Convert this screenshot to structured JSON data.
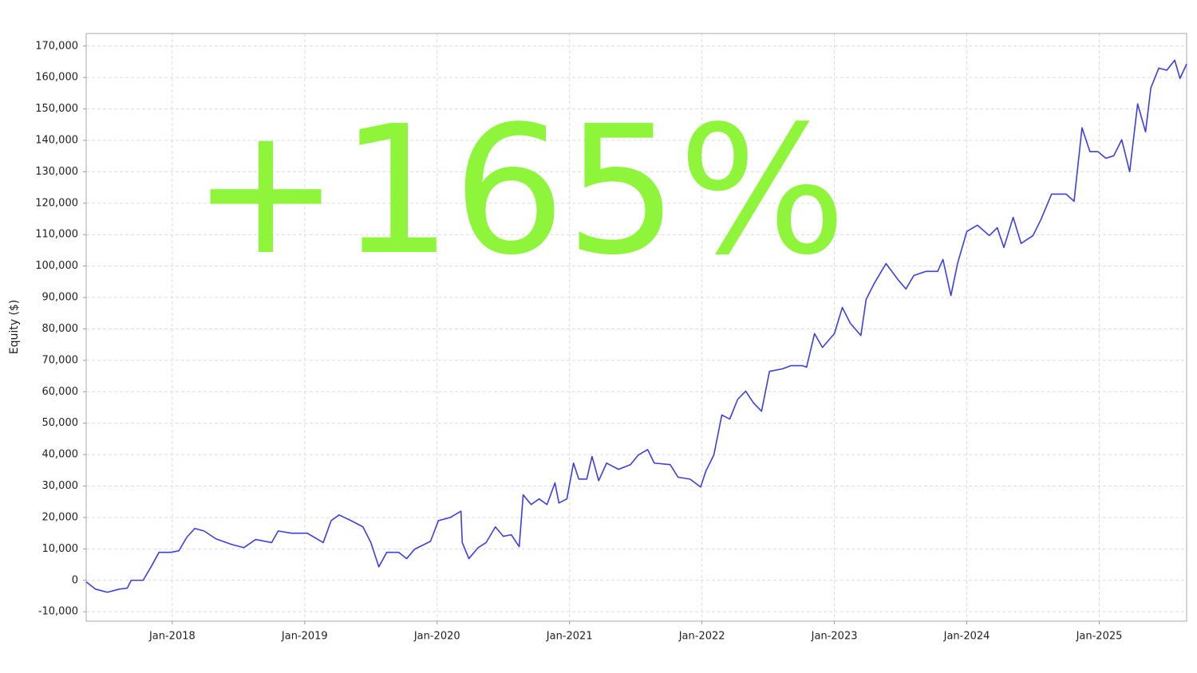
{
  "chart_data": {
    "type": "line",
    "y_label": "Equity ($)",
    "annotation": "+165%",
    "annotation_color": "#8ef53a",
    "color": "#3b3fe0",
    "grid": true,
    "xlim": [
      2017.35,
      2025.66
    ],
    "ylim": [
      -13000,
      174000
    ],
    "xticks": [
      {
        "value": 2018,
        "label": "Jan-2018"
      },
      {
        "value": 2019,
        "label": "Jan-2019"
      },
      {
        "value": 2020,
        "label": "Jan-2020"
      },
      {
        "value": 2021,
        "label": "Jan-2021"
      },
      {
        "value": 2022,
        "label": "Jan-2022"
      },
      {
        "value": 2023,
        "label": "Jan-2023"
      },
      {
        "value": 2024,
        "label": "Jan-2024"
      },
      {
        "value": 2025,
        "label": "Jan-2025"
      }
    ],
    "yticks": [
      {
        "value": -10000,
        "label": "-10,000"
      },
      0,
      {
        "value": 10000,
        "label": "10,000"
      },
      {
        "value": 20000,
        "label": "20,000"
      },
      {
        "value": 30000,
        "label": "30,000"
      },
      {
        "value": 40000,
        "label": "40,000"
      },
      {
        "value": 50000,
        "label": "50,000"
      },
      {
        "value": 60000,
        "label": "60,000"
      },
      {
        "value": 70000,
        "label": "70,000"
      },
      {
        "value": 80000,
        "label": "80,000"
      },
      {
        "value": 90000,
        "label": "90,000"
      },
      {
        "value": 100000,
        "label": "100,000"
      },
      {
        "value": 110000,
        "label": "110,000"
      },
      {
        "value": 120000,
        "label": "120,000"
      },
      {
        "value": 130000,
        "label": "130,000"
      },
      {
        "value": 140000,
        "label": "140,000"
      },
      {
        "value": 150000,
        "label": "150,000"
      },
      {
        "value": 160000,
        "label": "160,000"
      },
      {
        "value": 170000,
        "label": "170,000"
      }
    ],
    "x": [
      2017.35,
      2017.42,
      2017.51,
      2017.6,
      2017.66,
      2017.69,
      2017.78,
      2017.84,
      2017.9,
      2017.99,
      2018.05,
      2018.11,
      2018.17,
      2018.24,
      2018.33,
      2018.45,
      2018.54,
      2018.63,
      2018.75,
      2018.8,
      2018.9,
      2019.02,
      2019.14,
      2019.2,
      2019.26,
      2019.35,
      2019.44,
      2019.5,
      2019.56,
      2019.62,
      2019.71,
      2019.77,
      2019.83,
      2019.95,
      2020.01,
      2020.1,
      2020.18,
      2020.19,
      2020.24,
      2020.31,
      2020.37,
      2020.44,
      2020.5,
      2020.56,
      2020.62,
      2020.65,
      2020.71,
      2020.77,
      2020.83,
      2020.89,
      2020.92,
      2020.98,
      2021.03,
      2021.07,
      2021.13,
      2021.17,
      2021.22,
      2021.28,
      2021.37,
      2021.46,
      2021.52,
      2021.59,
      2021.64,
      2021.76,
      2021.82,
      2021.91,
      2021.99,
      2022.03,
      2022.09,
      2022.15,
      2022.21,
      2022.27,
      2022.33,
      2022.39,
      2022.45,
      2022.51,
      2022.61,
      2022.67,
      2022.76,
      2022.79,
      2022.85,
      2022.91,
      2023.0,
      2023.06,
      2023.12,
      2023.2,
      2023.24,
      2023.3,
      2023.39,
      2023.48,
      2023.54,
      2023.6,
      2023.69,
      2023.78,
      2023.82,
      2023.88,
      2023.93,
      2024.0,
      2024.08,
      2024.17,
      2024.23,
      2024.28,
      2024.35,
      2024.41,
      2024.5,
      2024.56,
      2024.64,
      2024.75,
      2024.81,
      2024.87,
      2024.93,
      2024.99,
      2025.05,
      2025.11,
      2025.17,
      2025.23,
      2025.29,
      2025.35,
      2025.39,
      2025.45,
      2025.51,
      2025.57,
      2025.61,
      2025.66
    ],
    "values": [
      -500,
      -2800,
      -3800,
      -2800,
      -2500,
      0,
      0,
      4300,
      8900,
      8900,
      9400,
      13700,
      16500,
      15700,
      13200,
      11400,
      10400,
      13000,
      12000,
      15700,
      15000,
      15000,
      12000,
      19000,
      20800,
      19000,
      17000,
      12000,
      4300,
      8900,
      8900,
      6900,
      9900,
      12400,
      19000,
      20000,
      22000,
      12000,
      6900,
      10400,
      12000,
      17000,
      14000,
      14500,
      10700,
      27200,
      24100,
      25900,
      24100,
      31000,
      24600,
      25900,
      37300,
      32200,
      32200,
      39400,
      31700,
      37300,
      35300,
      36800,
      39900,
      41600,
      37300,
      36800,
      32800,
      32200,
      29700,
      34800,
      39900,
      52600,
      51300,
      57600,
      60200,
      56400,
      53800,
      66500,
      67300,
      68300,
      68300,
      67800,
      78500,
      74100,
      78500,
      86800,
      81800,
      77900,
      89400,
      94400,
      100800,
      95700,
      92700,
      97000,
      98300,
      98300,
      102100,
      90600,
      100800,
      111000,
      113000,
      109700,
      112200,
      105900,
      115500,
      107200,
      109700,
      114800,
      122900,
      122900,
      120600,
      144000,
      136400,
      136400,
      134300,
      135100,
      140200,
      130000,
      151600,
      142700,
      156700,
      163000,
      162300,
      165500,
      159700,
      164300
    ]
  }
}
